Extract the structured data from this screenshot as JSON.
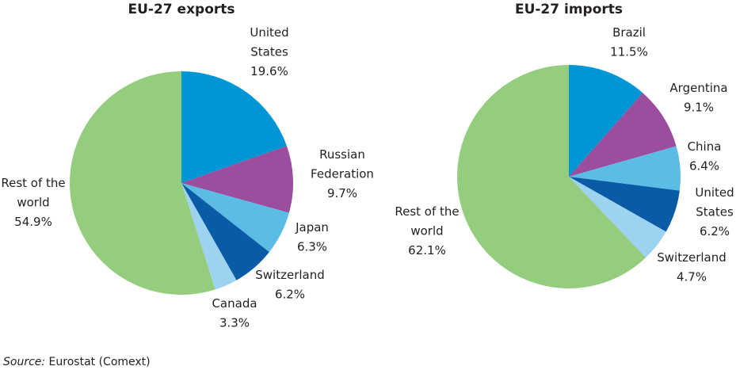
{
  "chart_data": [
    {
      "type": "pie",
      "title": "EU-27 exports",
      "slices": [
        {
          "label": [
            "United",
            "States"
          ],
          "value": 19.6,
          "value_label": "19.6%",
          "color": "#0096d6"
        },
        {
          "label": [
            "Russian",
            "Federation"
          ],
          "value": 9.7,
          "value_label": "9.7%",
          "color": "#9b4d9e"
        },
        {
          "label": [
            "Japan"
          ],
          "value": 6.3,
          "value_label": "6.3%",
          "color": "#5bbde6"
        },
        {
          "label": [
            "Switzerland"
          ],
          "value": 6.2,
          "value_label": "6.2%",
          "color": "#0a5ba6"
        },
        {
          "label": [
            "Canada"
          ],
          "value": 3.3,
          "value_label": "3.3%",
          "color": "#9dd3f1"
        },
        {
          "label": [
            "Rest of the",
            "world"
          ],
          "value": 54.9,
          "value_label": "54.9%",
          "color": "#95cd7f"
        }
      ]
    },
    {
      "type": "pie",
      "title": "EU-27 imports",
      "slices": [
        {
          "label": [
            "Brazil"
          ],
          "value": 11.5,
          "value_label": "11.5%",
          "color": "#0096d6"
        },
        {
          "label": [
            "Argentina"
          ],
          "value": 9.1,
          "value_label": "9.1%",
          "color": "#9b4d9e"
        },
        {
          "label": [
            "China"
          ],
          "value": 6.4,
          "value_label": "6.4%",
          "color": "#5bbde6"
        },
        {
          "label": [
            "United",
            "States"
          ],
          "value": 6.2,
          "value_label": "6.2%",
          "color": "#0a5ba6"
        },
        {
          "label": [
            "Switzerland"
          ],
          "value": 4.7,
          "value_label": "4.7%",
          "color": "#9dd3f1"
        },
        {
          "label": [
            "Rest of the",
            "world"
          ],
          "value": 62.1,
          "value_label": "62.1%",
          "color": "#95cd7f"
        }
      ]
    }
  ],
  "source": {
    "prefix": "Source:",
    "text": " Eurostat (Comext)"
  }
}
